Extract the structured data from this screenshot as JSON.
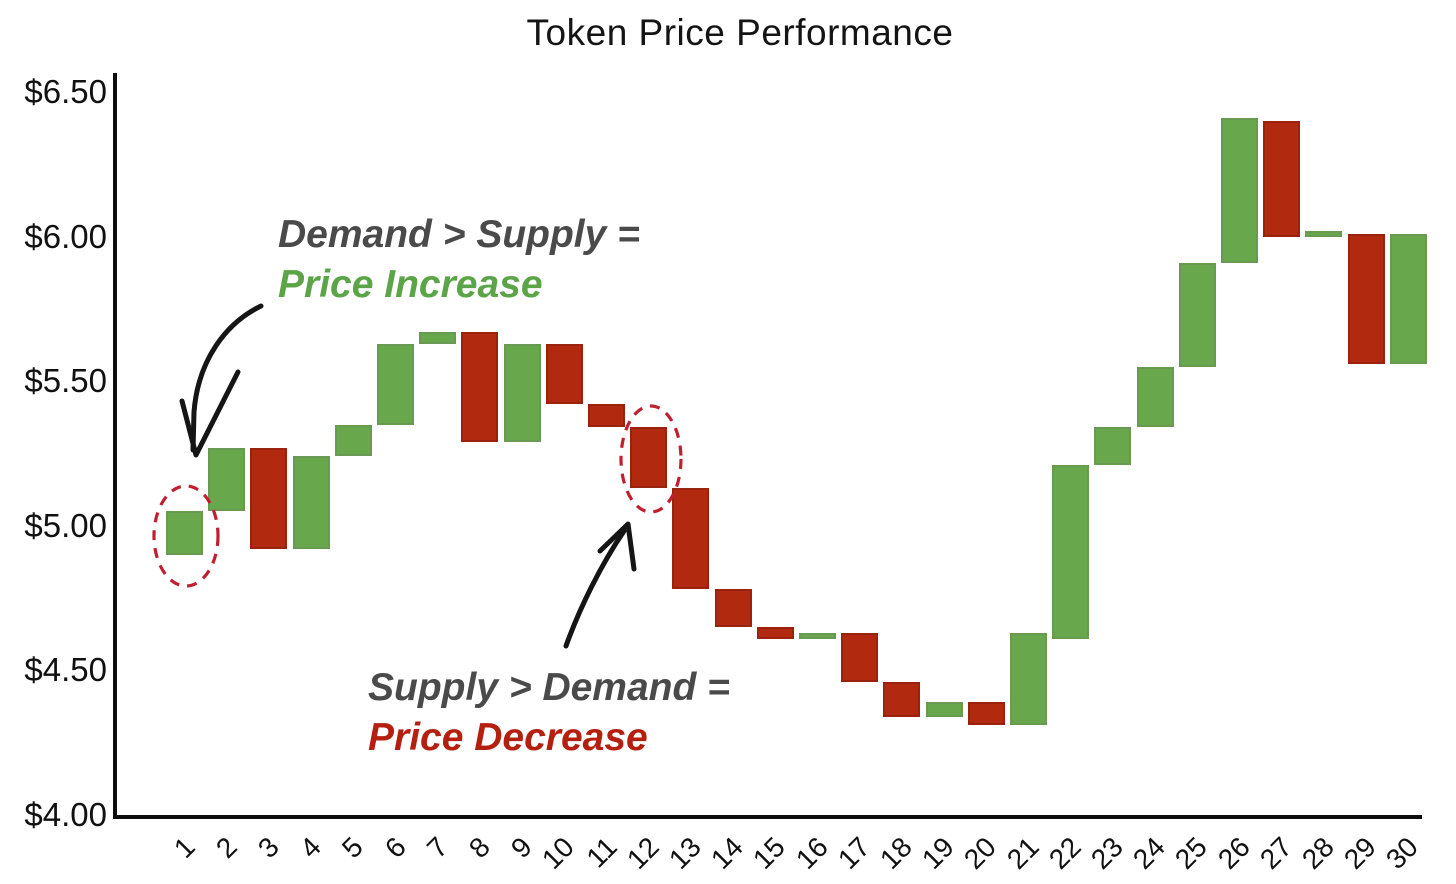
{
  "title": "Token Price Performance",
  "annotations": {
    "increase": {
      "line1": "Demand > Supply =",
      "line2": "Price Increase"
    },
    "decrease": {
      "line1": "Supply > Demand =",
      "line2": "Price Decrease"
    }
  },
  "colors": {
    "bar_up_green": "#69a74c",
    "bar_down_red": "#b12a10",
    "annotation_gray": "#4a4a4a",
    "annotation_green": "#5ba447",
    "annotation_red": "#b41f10",
    "highlight_ellipse_red": "#c01f2f",
    "axis_black": "#0d0d0d"
  },
  "chart_data": {
    "type": "bar",
    "subtype": "waterfall",
    "title": "Token Price Performance",
    "xlabel": "",
    "ylabel": "",
    "ylim": [
      4.0,
      6.5
    ],
    "grid": false,
    "legend": false,
    "y_ticks": [
      {
        "value": 6.5,
        "label": "$6.50"
      },
      {
        "value": 6.0,
        "label": "$6.00"
      },
      {
        "value": 5.5,
        "label": "$5.50"
      },
      {
        "value": 5.0,
        "label": "$5.00"
      },
      {
        "value": 4.5,
        "label": "$4.50"
      },
      {
        "value": 4.0,
        "label": "$4.00"
      }
    ],
    "x_tick_labels": [
      "1",
      "2",
      "3",
      "4",
      "5",
      "6",
      "7",
      "8",
      "9",
      "10",
      "11",
      "12",
      "13",
      "14",
      "15",
      "16",
      "17",
      "18",
      "19",
      "20",
      "21",
      "22",
      "23",
      "24",
      "25",
      "26",
      "27",
      "28",
      "29",
      "30"
    ],
    "bars": [
      {
        "period": 1,
        "start": 4.9,
        "end": 5.05,
        "direction": "increase"
      },
      {
        "period": 2,
        "start": 5.05,
        "end": 5.27,
        "direction": "increase"
      },
      {
        "period": 3,
        "start": 5.27,
        "end": 4.92,
        "direction": "decrease"
      },
      {
        "period": 4,
        "start": 4.92,
        "end": 5.24,
        "direction": "increase"
      },
      {
        "period": 5,
        "start": 5.24,
        "end": 5.35,
        "direction": "increase"
      },
      {
        "period": 6,
        "start": 5.35,
        "end": 5.63,
        "direction": "increase"
      },
      {
        "period": 7,
        "start": 5.63,
        "end": 5.67,
        "direction": "increase"
      },
      {
        "period": 8,
        "start": 5.67,
        "end": 5.29,
        "direction": "decrease"
      },
      {
        "period": 9,
        "start": 5.29,
        "end": 5.63,
        "direction": "increase"
      },
      {
        "period": 10,
        "start": 5.63,
        "end": 5.42,
        "direction": "decrease"
      },
      {
        "period": 11,
        "start": 5.42,
        "end": 5.34,
        "direction": "decrease"
      },
      {
        "period": 12,
        "start": 5.34,
        "end": 5.13,
        "direction": "decrease"
      },
      {
        "period": 13,
        "start": 5.13,
        "end": 4.78,
        "direction": "decrease"
      },
      {
        "period": 14,
        "start": 4.78,
        "end": 4.65,
        "direction": "decrease"
      },
      {
        "period": 15,
        "start": 4.65,
        "end": 4.61,
        "direction": "decrease"
      },
      {
        "period": 16,
        "start": 4.61,
        "end": 4.63,
        "direction": "increase"
      },
      {
        "period": 17,
        "start": 4.63,
        "end": 4.46,
        "direction": "decrease"
      },
      {
        "period": 18,
        "start": 4.46,
        "end": 4.34,
        "direction": "decrease"
      },
      {
        "period": 19,
        "start": 4.34,
        "end": 4.39,
        "direction": "increase"
      },
      {
        "period": 20,
        "start": 4.39,
        "end": 4.31,
        "direction": "decrease"
      },
      {
        "period": 21,
        "start": 4.31,
        "end": 4.63,
        "direction": "increase"
      },
      {
        "period": 22,
        "start": 4.61,
        "end": 5.21,
        "direction": "increase"
      },
      {
        "period": 23,
        "start": 5.21,
        "end": 5.34,
        "direction": "increase"
      },
      {
        "period": 24,
        "start": 5.34,
        "end": 5.55,
        "direction": "increase"
      },
      {
        "period": 25,
        "start": 5.55,
        "end": 5.91,
        "direction": "increase"
      },
      {
        "period": 26,
        "start": 5.91,
        "end": 6.41,
        "direction": "increase"
      },
      {
        "period": 27,
        "start": 6.4,
        "end": 6.0,
        "direction": "decrease"
      },
      {
        "period": 28,
        "start": 6.0,
        "end": 6.02,
        "direction": "increase"
      },
      {
        "period": 29,
        "start": 6.01,
        "end": 5.56,
        "direction": "decrease"
      },
      {
        "period": 30,
        "start": 5.56,
        "end": 6.01,
        "direction": "increase"
      }
    ],
    "highlighted_periods": [
      1,
      12
    ]
  }
}
